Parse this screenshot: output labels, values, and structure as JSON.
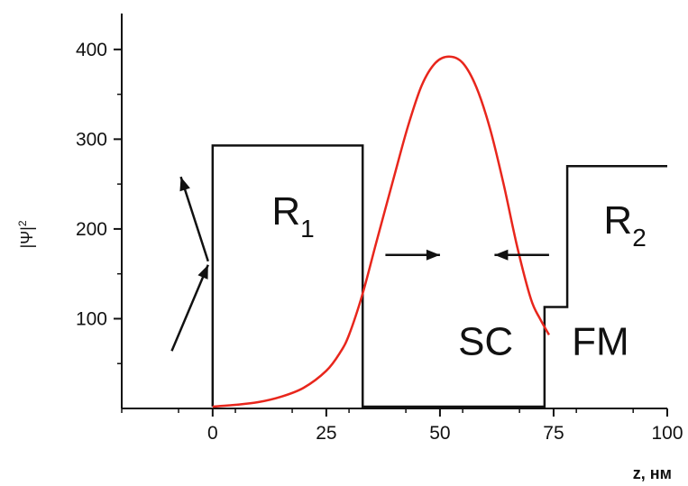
{
  "chart_data": {
    "type": "line",
    "xlabel": "z, нм",
    "ylabel": "|Ψ|",
    "ylabel_sup": "2",
    "xlim": [
      -20,
      100
    ],
    "ylim": [
      0,
      440
    ],
    "x_ticks": [
      0,
      25,
      50,
      75,
      100
    ],
    "y_ticks": [
      100,
      200,
      300,
      400
    ],
    "grid": false,
    "series": [
      {
        "color": "#e8261c",
        "x": [
          0,
          5,
          10,
          15,
          20,
          25,
          28,
          30,
          33,
          36,
          40,
          43,
          46,
          49,
          52,
          55,
          58,
          61,
          64,
          67,
          70,
          72,
          74
        ],
        "y": [
          2,
          4,
          7,
          13,
          23,
          42,
          62,
          82,
          128,
          185,
          260,
          315,
          360,
          385,
          392,
          385,
          358,
          312,
          250,
          180,
          122,
          100,
          82
        ]
      }
    ],
    "potential_profile": {
      "color": "#111111",
      "x": [
        0,
        0,
        33,
        33,
        73,
        73,
        78,
        78,
        100
      ],
      "y": [
        2,
        293,
        293,
        2,
        2,
        113,
        113,
        270,
        270
      ]
    },
    "region_labels": [
      {
        "main": "R",
        "sub": "1",
        "x": 13,
        "y": 205
      },
      {
        "main": "R",
        "sub": "2",
        "x": 86,
        "y": 195
      },
      {
        "main": "SC",
        "sub": "",
        "x": 54,
        "y": 60
      },
      {
        "main": "FM",
        "sub": "",
        "x": 79,
        "y": 60
      }
    ],
    "arrows": [
      {
        "from": [
          -9,
          64
        ],
        "to": [
          -1,
          160
        ]
      },
      {
        "from": [
          -1,
          164
        ],
        "to": [
          -7,
          258
        ]
      },
      {
        "from": [
          38,
          171
        ],
        "to": [
          50,
          171
        ]
      },
      {
        "from": [
          74,
          171
        ],
        "to": [
          62,
          171
        ]
      }
    ]
  }
}
